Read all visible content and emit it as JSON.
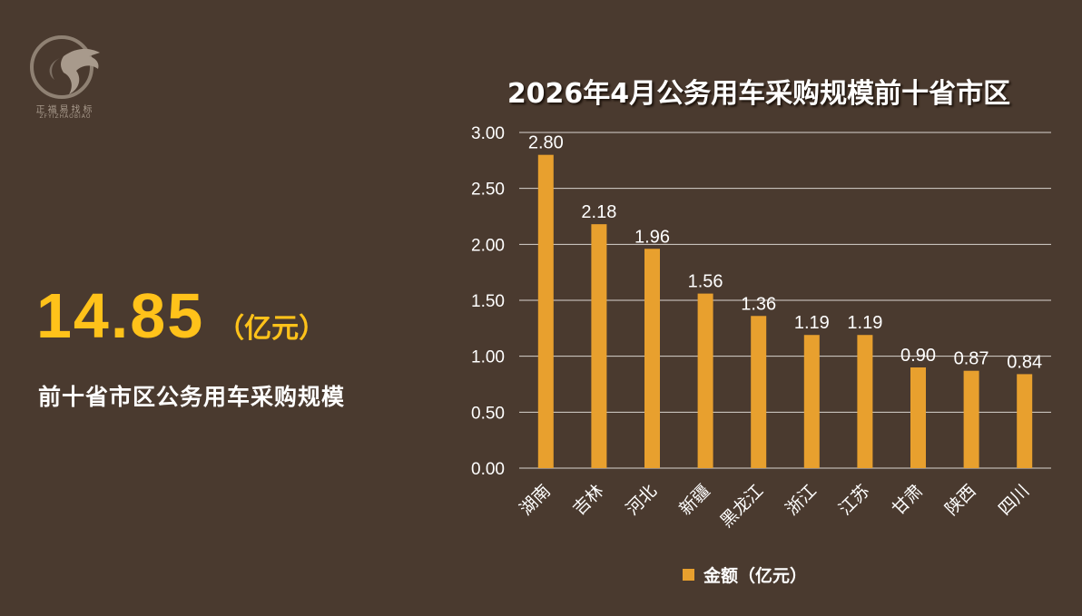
{
  "logo": {
    "text_cn": "正福易找标",
    "text_en": "ZFYIZHAOBIAO",
    "icon": "eagle-logo-icon"
  },
  "summary": {
    "total_value": "14.85",
    "total_unit": "（亿元）",
    "description": "前十省市区公务用车采购规模"
  },
  "colors": {
    "background": "#4a3a2f",
    "accent": "#ffc21a",
    "bar": "#e8a02e"
  },
  "chart_data": {
    "type": "bar",
    "title": "2026年4月公务用车采购规模前十省市区",
    "categories": [
      "湖南",
      "吉林",
      "河北",
      "新疆",
      "黑龙江",
      "浙江",
      "江苏",
      "甘肃",
      "陕西",
      "四川"
    ],
    "series": [
      {
        "name": "金额（亿元）",
        "values": [
          2.8,
          2.18,
          1.96,
          1.56,
          1.36,
          1.19,
          1.19,
          0.9,
          0.87,
          0.84
        ]
      }
    ],
    "value_labels": [
      "2.80",
      "2.18",
      "1.96",
      "1.56",
      "1.36",
      "1.19",
      "1.19",
      "0.90",
      "0.87",
      "0.84"
    ],
    "ylim": [
      0,
      3
    ],
    "yticks": [
      0,
      0.5,
      1,
      1.5,
      2,
      2.5,
      3
    ],
    "ytick_labels": [
      "0.00",
      "0.50",
      "1.00",
      "1.50",
      "2.00",
      "2.50",
      "3.00"
    ],
    "grid": true,
    "legend_position": "bottom",
    "xlabel": "",
    "ylabel": ""
  }
}
